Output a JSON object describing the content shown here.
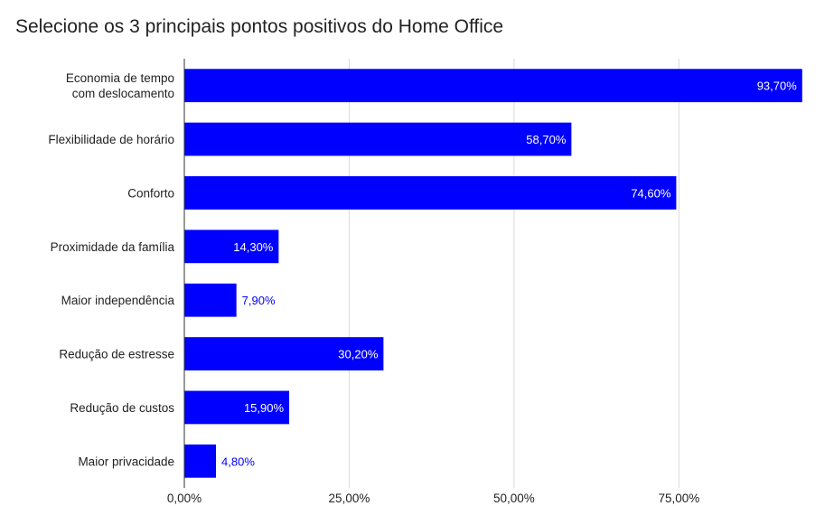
{
  "chart_data": {
    "type": "bar",
    "orientation": "horizontal",
    "title": "Selecione os 3 principais pontos positivos do Home Office",
    "categories": [
      [
        "Economia de tempo",
        "com deslocamento"
      ],
      [
        "Flexibilidade de horário"
      ],
      [
        "Conforto"
      ],
      [
        "Proximidade da família"
      ],
      [
        "Maior independência"
      ],
      [
        "Redução de estresse"
      ],
      [
        "Redução de custos"
      ],
      [
        "Maior privacidade"
      ]
    ],
    "values": [
      93.7,
      58.7,
      74.6,
      14.3,
      7.9,
      30.2,
      15.9,
      4.8
    ],
    "data_labels": [
      "93,70%",
      "58,70%",
      "74,60%",
      "14,30%",
      "7,90%",
      "30,20%",
      "15,90%",
      "4,80%"
    ],
    "x_ticks": [
      0,
      25,
      50,
      75
    ],
    "x_tick_labels": [
      "0,00%",
      "25,00%",
      "50,00%",
      "75,00%"
    ],
    "xlim": [
      0,
      94
    ],
    "grid": true,
    "legend": "none",
    "bar_color": "#0000ff",
    "label_color_inside": "#ffffff",
    "label_color_outside": "#0000ff"
  }
}
